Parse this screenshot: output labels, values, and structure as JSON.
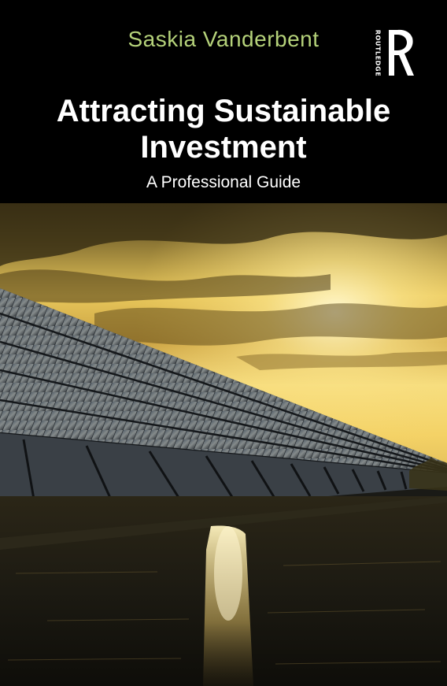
{
  "book": {
    "author": "Saskia Vanderbent",
    "title_line1": "Attracting Sustainable",
    "title_line2": "Investment",
    "subtitle": "A Professional Guide",
    "publisher": "ROUTLEDGE",
    "publisher_logo_icon": "routledge-r-profile-icon"
  },
  "cover_image": {
    "subject": "solar-panel-building-sunset-icon",
    "colors": {
      "sky_gold": "#f4d266",
      "cloud_dark": "#3a2d12",
      "water": "#1e1a12",
      "panel": "#3f4750",
      "author_green": "#b5d27a"
    }
  }
}
